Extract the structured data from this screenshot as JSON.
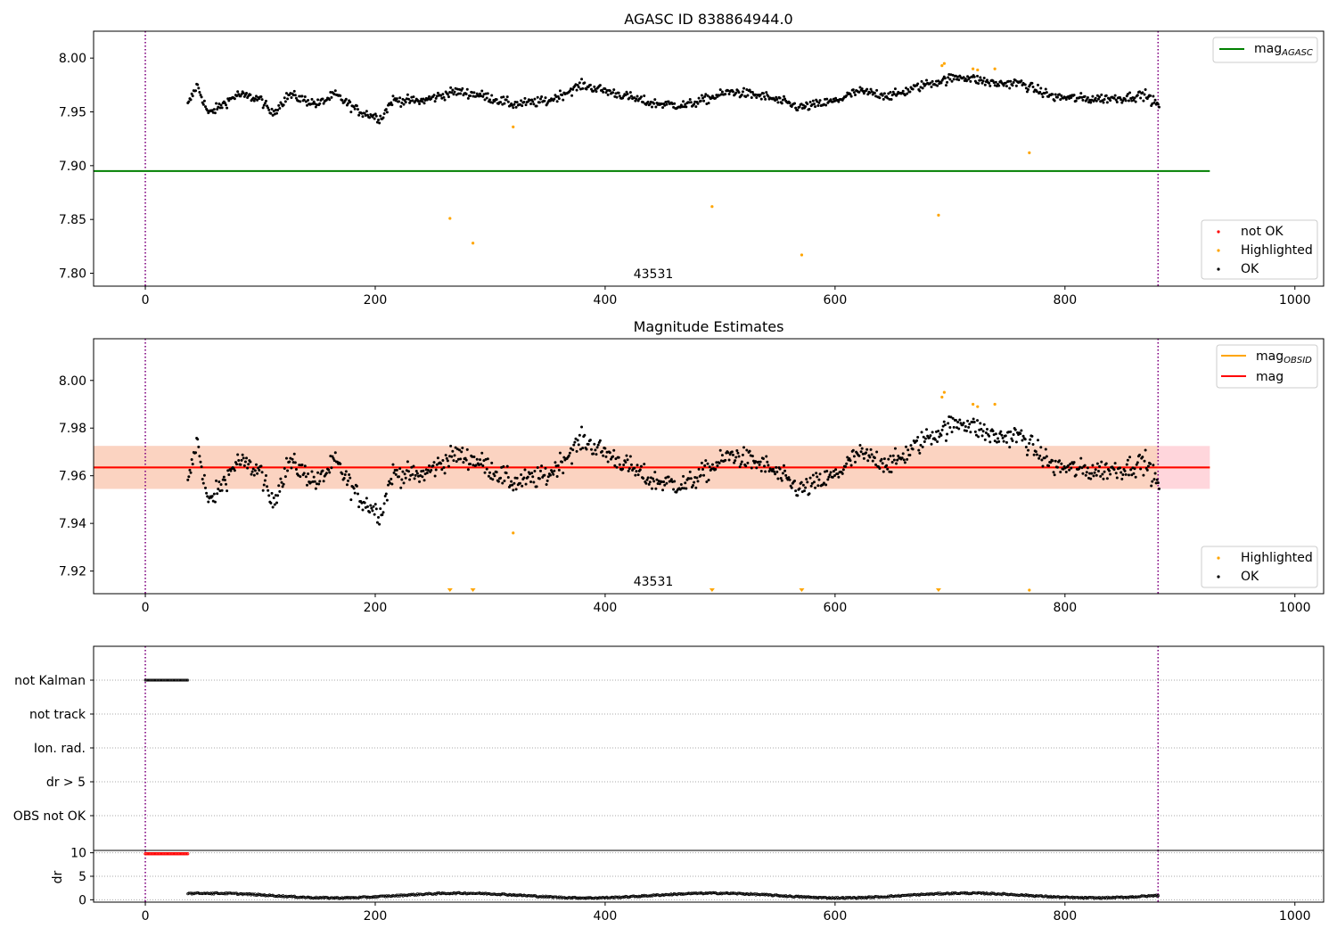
{
  "chart_data": [
    {
      "type": "scatter",
      "title": "AGASC ID 838864944.0",
      "xlim": [
        -45,
        1025
      ],
      "ylim": [
        7.788,
        8.025
      ],
      "xticks": [
        0,
        200,
        400,
        600,
        800,
        1000
      ],
      "xtick_labels": [
        "0",
        "200",
        "400",
        "600",
        "800",
        "1000"
      ],
      "yticks": [
        7.8,
        7.85,
        7.9,
        7.95,
        8.0
      ],
      "ytick_labels": [
        "7.80",
        "7.85",
        "7.90",
        "7.95",
        "8.00"
      ],
      "vlines": [
        0,
        881
      ],
      "hline": {
        "name": "mag_AGASC",
        "y": 7.895,
        "x": [
          -45,
          926
        ]
      },
      "annotation": {
        "text": "43531",
        "x": 440,
        "y": 7.797
      },
      "ok_range": [
        37,
        882
      ],
      "highlighted": [
        {
          "x": 265,
          "y": 7.851
        },
        {
          "x": 285,
          "y": 7.828
        },
        {
          "x": 320,
          "y": 7.936
        },
        {
          "x": 493,
          "y": 7.862
        },
        {
          "x": 571,
          "y": 7.817
        },
        {
          "x": 690,
          "y": 7.854
        },
        {
          "x": 693,
          "y": 7.993
        },
        {
          "x": 695,
          "y": 7.995
        },
        {
          "x": 720,
          "y": 7.99
        },
        {
          "x": 724,
          "y": 7.989
        },
        {
          "x": 739,
          "y": 7.99
        },
        {
          "x": 769,
          "y": 7.912
        }
      ],
      "legend_top": [
        {
          "name": "mag",
          "subscript": "AGASC",
          "color": "#008000"
        }
      ],
      "legend_bottom": [
        {
          "name": "not OK",
          "color": "#ff0000"
        },
        {
          "name": "Highlighted",
          "color": "#ffa500"
        },
        {
          "name": "OK",
          "color": "#000000"
        }
      ],
      "legend_placement": "top-right / bottom-right"
    },
    {
      "type": "scatter",
      "title": "Magnitude Estimates",
      "xlim": [
        -45,
        1025
      ],
      "ylim": [
        7.9105,
        8.0175
      ],
      "xticks": [
        0,
        200,
        400,
        600,
        800,
        1000
      ],
      "xtick_labels": [
        "0",
        "200",
        "400",
        "600",
        "800",
        "1000"
      ],
      "yticks": [
        7.92,
        7.94,
        7.96,
        7.98,
        8.0
      ],
      "ytick_labels": [
        "7.92",
        "7.94",
        "7.96",
        "7.98",
        "8.00"
      ],
      "vlines": [
        0,
        881
      ],
      "mag_line": {
        "name": "mag",
        "y": 7.9635,
        "x": [
          -45,
          926
        ]
      },
      "mag_obsid_line": {
        "name": "mag_OBSID",
        "y": 7.9635,
        "x": [
          -45,
          926
        ]
      },
      "band_outer": {
        "ymin": 7.9545,
        "ymax": 7.9725,
        "x": [
          -45,
          926
        ]
      },
      "band_inner": {
        "ymin": 7.9545,
        "ymax": 7.9725,
        "x": [
          -45,
          881
        ]
      },
      "annotation": {
        "text": "43531",
        "x": 440,
        "y": 7.914
      },
      "highlighted": [
        {
          "x": 320,
          "y": 7.936
        },
        {
          "x": 693,
          "y": 7.993
        },
        {
          "x": 695,
          "y": 7.995
        },
        {
          "x": 720,
          "y": 7.99
        },
        {
          "x": 724,
          "y": 7.989
        },
        {
          "x": 739,
          "y": 7.99
        },
        {
          "x": 769,
          "y": 7.912
        }
      ],
      "below_range_markers": [
        265,
        285,
        493,
        571,
        690
      ],
      "legend_top": [
        {
          "name": "mag",
          "subscript": "OBSID",
          "color": "#ffa500"
        },
        {
          "name": "mag",
          "subscript": "",
          "color": "#ff0000"
        }
      ],
      "legend_bottom": [
        {
          "name": "Highlighted",
          "color": "#ffa500"
        },
        {
          "name": "OK",
          "color": "#000000"
        }
      ],
      "legend_placement": "top-right / bottom-right"
    },
    {
      "type": "scatter",
      "xlim": [
        -45,
        1025
      ],
      "flag_rows": [
        "not Kalman",
        "not track",
        "Ion. rad.",
        "dr > 5",
        "OBS not OK"
      ],
      "flag_points": {
        "row": "not Kalman",
        "x_range": [
          0,
          37
        ]
      },
      "vlines": [
        0,
        881
      ]
    },
    {
      "type": "scatter",
      "ylabel": "dr",
      "xlim": [
        -45,
        1025
      ],
      "ylim": [
        -0.5,
        10.5
      ],
      "yticks": [
        0,
        5,
        10
      ],
      "ytick_labels": [
        "0",
        "5",
        "10"
      ],
      "xticks": [
        0,
        200,
        400,
        600,
        800,
        1000
      ],
      "xtick_labels": [
        "0",
        "200",
        "400",
        "600",
        "800",
        "1000"
      ],
      "not_ok_points": {
        "y": 9.8,
        "x_range": [
          0,
          37
        ]
      },
      "ok_range": [
        37,
        882
      ],
      "vlines": [
        0,
        881
      ]
    }
  ],
  "colors": {
    "ok": "#000000",
    "highlighted": "#ffa500",
    "not_ok": "#ff0000",
    "mag_agasc": "#008000",
    "mag": "#ff0000",
    "mag_obsid": "#ffa500",
    "vline": "#800080",
    "band_outer": "#ffd6dc",
    "band_inner": "#fbd3c1"
  }
}
